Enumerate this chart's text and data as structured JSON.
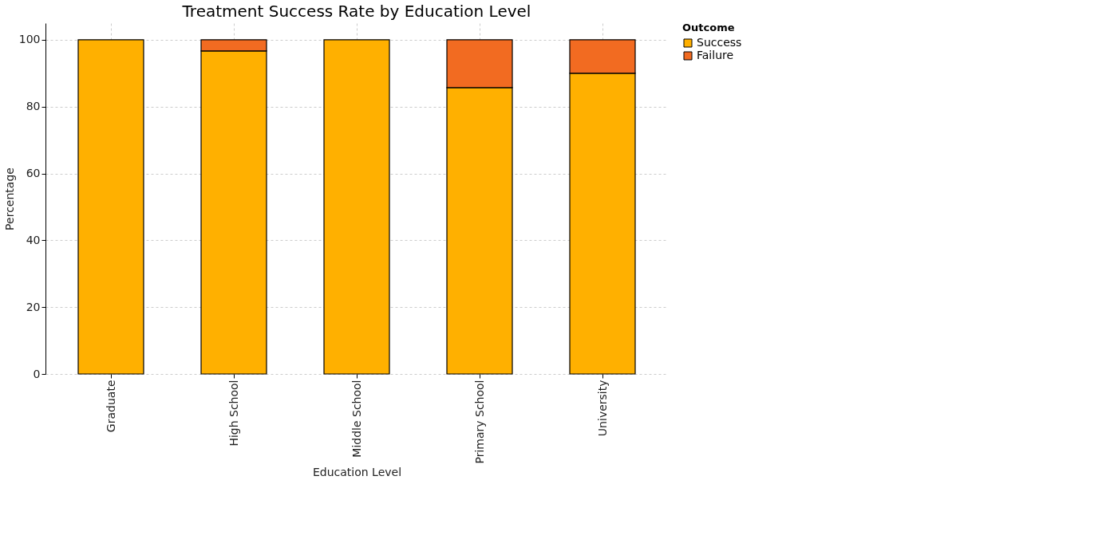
{
  "chart_data": {
    "type": "bar",
    "title": "Treatment Success Rate by Education Level",
    "xlabel": "Education Level",
    "ylabel": "Percentage",
    "legend_title": "Outcome",
    "categories": [
      "Graduate",
      "High School",
      "Middle School",
      "Primary School",
      "University"
    ],
    "series": [
      {
        "name": "Success",
        "color": "#ffb000",
        "values": [
          100,
          96.7,
          100,
          85.7,
          90
        ]
      },
      {
        "name": "Failure",
        "color": "#f26b21",
        "values": [
          0,
          3.3,
          0,
          14.3,
          10
        ]
      }
    ],
    "stacked": true,
    "ylim": [
      0,
      105
    ],
    "yticks": [
      0,
      20,
      40,
      60,
      80,
      100
    ],
    "grid": true,
    "legend": "right"
  }
}
